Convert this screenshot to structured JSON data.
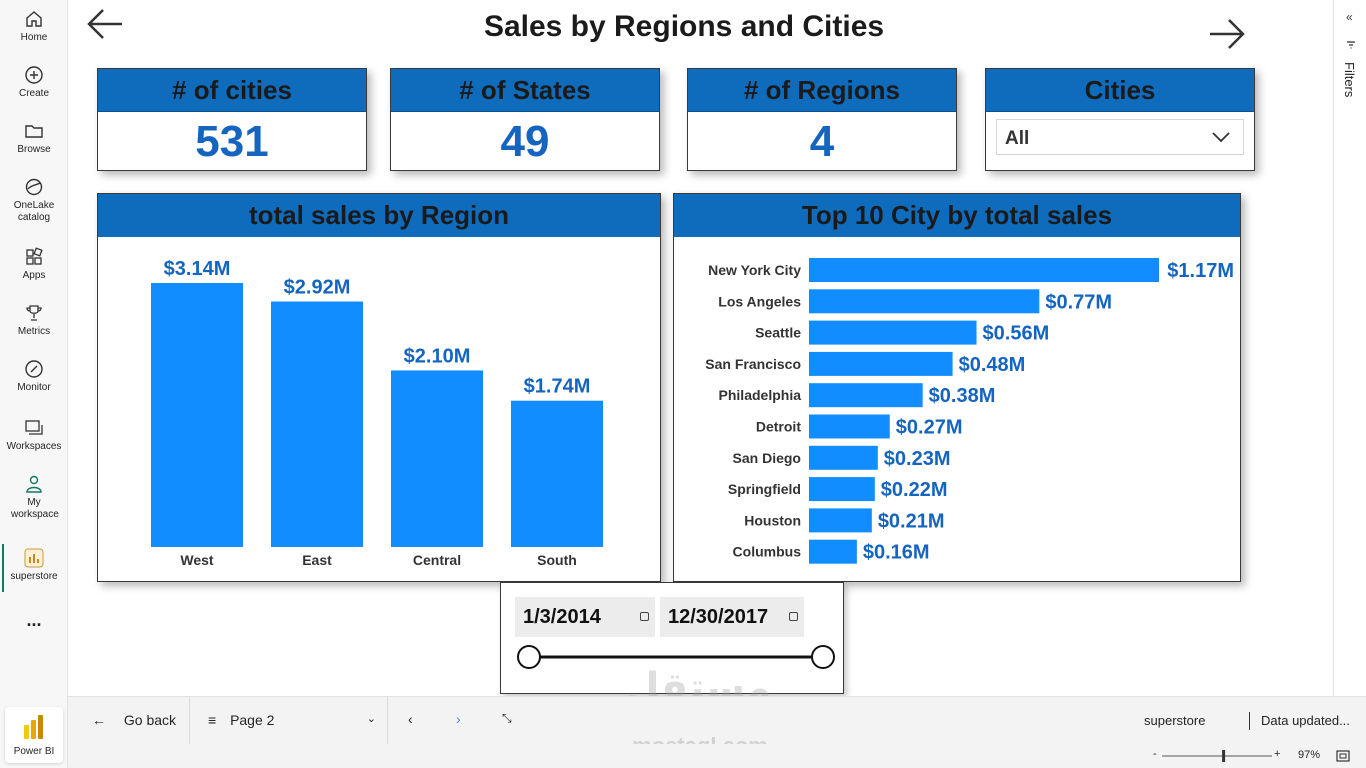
{
  "nav": {
    "items": [
      {
        "label": "Home",
        "icon": "home-icon"
      },
      {
        "label": "Create",
        "icon": "plus-circle-icon"
      },
      {
        "label": "Browse",
        "icon": "folder-icon"
      },
      {
        "label": "OneLake catalog",
        "icon": "onelake-icon"
      },
      {
        "label": "Apps",
        "icon": "apps-icon"
      },
      {
        "label": "Metrics",
        "icon": "trophy-icon"
      },
      {
        "label": "Monitor",
        "icon": "monitor-icon"
      },
      {
        "label": "Workspaces",
        "icon": "workspaces-icon"
      },
      {
        "label": "My workspace",
        "icon": "person-icon"
      },
      {
        "label": "superstore",
        "icon": "report-icon"
      }
    ],
    "more": "...",
    "powerbi_label": "Power BI"
  },
  "report": {
    "title": "Sales by Regions and Cities",
    "cards": [
      {
        "label": "# of cities",
        "value": "531"
      },
      {
        "label": "# of States",
        "value": "49"
      },
      {
        "label": "# of Regions",
        "value": "4"
      }
    ],
    "cities_slicer": {
      "label": "Cities",
      "selected": "All"
    },
    "date_slicer": {
      "start": "1/3/2014",
      "end": "12/30/2017",
      "start_fraction": 0,
      "end_fraction": 1
    }
  },
  "chart_data": [
    {
      "type": "bar",
      "title": "total sales by Region",
      "categories": [
        "West",
        "East",
        "Central",
        "South"
      ],
      "values": [
        3.14,
        2.92,
        2.1,
        1.74
      ],
      "labels": [
        "$3.14M",
        "$2.92M",
        "$2.10M",
        "$1.74M"
      ],
      "unit": "$M",
      "color": "#118dff",
      "ylim": [
        0,
        3.6
      ],
      "grid": false
    },
    {
      "type": "bar",
      "orientation": "horizontal",
      "title": "Top 10 City by total sales",
      "categories": [
        "New York City",
        "Los Angeles",
        "Seattle",
        "San Francisco",
        "Philadelphia",
        "Detroit",
        "San Diego",
        "Springfield",
        "Houston",
        "Columbus"
      ],
      "values": [
        1.17,
        0.77,
        0.56,
        0.48,
        0.38,
        0.27,
        0.23,
        0.22,
        0.21,
        0.16
      ],
      "labels": [
        "$1.17M",
        "$0.77M",
        "$0.56M",
        "$0.48M",
        "$0.38M",
        "$0.27M",
        "$0.23M",
        "$0.22M",
        "$0.21M",
        "$0.16M"
      ],
      "unit": "$M",
      "color": "#118dff",
      "xlim": [
        0,
        1.17
      ],
      "grid": false
    }
  ],
  "bottom": {
    "go_back": "Go back",
    "page": "Page 2",
    "report_name": "superstore",
    "data_updated": "Data updated...",
    "zoom": "97%",
    "zoom_fraction": 0.56,
    "zoom_minus": "-",
    "zoom_plus": "+"
  },
  "filters": {
    "label": "Filters"
  },
  "watermark": {
    "arabic": "مستقل",
    "latin": "mostaql.com"
  }
}
